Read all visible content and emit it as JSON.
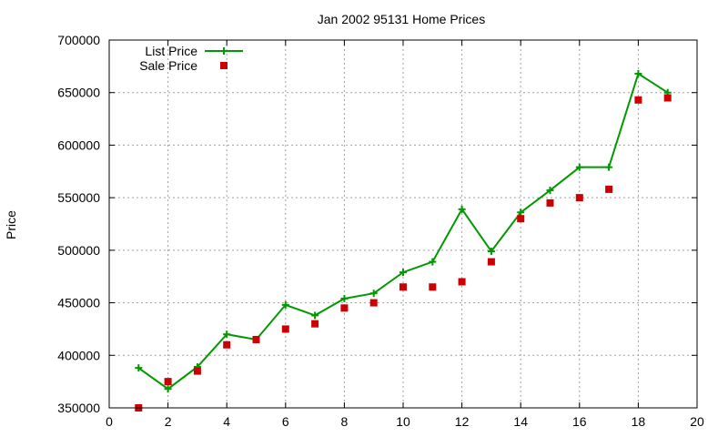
{
  "chart_data": {
    "type": "line",
    "title": "Jan 2002 95131 Home Prices",
    "xlabel": "",
    "ylabel": "Price",
    "xlim": [
      0,
      20
    ],
    "ylim": [
      350000,
      700000
    ],
    "x_ticks": [
      0,
      2,
      4,
      6,
      8,
      10,
      12,
      14,
      16,
      18,
      20
    ],
    "y_ticks": [
      350000,
      400000,
      450000,
      500000,
      550000,
      600000,
      650000,
      700000
    ],
    "grid": true,
    "legend_position": "top-left",
    "series": [
      {
        "name": "List Price",
        "style": "line+cross",
        "color": "#009900",
        "x": [
          1,
          2,
          3,
          4,
          5,
          6,
          7,
          8,
          9,
          10,
          11,
          12,
          13,
          14,
          15,
          16,
          17,
          18,
          19
        ],
        "values": [
          388000,
          368000,
          389000,
          420000,
          415000,
          448000,
          438000,
          454000,
          459000,
          479000,
          489000,
          539000,
          499000,
          536000,
          557000,
          579000,
          579000,
          668000,
          650000
        ]
      },
      {
        "name": "Sale Price",
        "style": "square",
        "color": "#cc0000",
        "x": [
          1,
          2,
          3,
          4,
          5,
          6,
          7,
          8,
          9,
          10,
          11,
          12,
          13,
          14,
          15,
          16,
          17,
          18,
          19
        ],
        "values": [
          350000,
          375000,
          385000,
          410000,
          415000,
          425000,
          430000,
          445000,
          450000,
          465000,
          465000,
          470000,
          489000,
          530000,
          545000,
          550000,
          558000,
          643000,
          645000
        ]
      }
    ]
  }
}
